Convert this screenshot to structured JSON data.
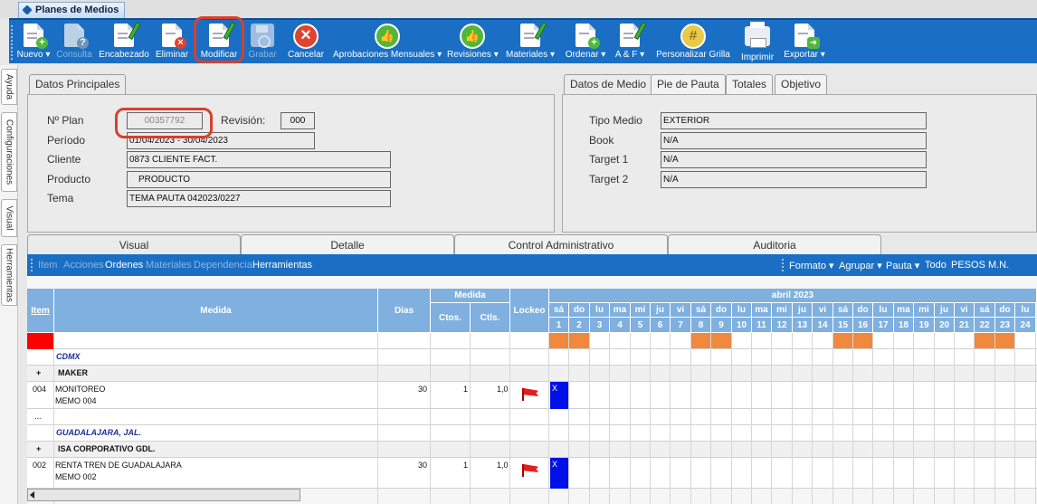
{
  "window": {
    "tab_title": "Planes de Medios"
  },
  "toolbar": {
    "nuevo": "Nuevo ▾",
    "consulta": "Consulta",
    "encabezado": "Encabezado",
    "eliminar": "Eliminar",
    "modificar": "Modificar",
    "grabar": "Grabar",
    "cancelar": "Cancelar",
    "aprobaciones": "Aprobaciones Mensuales ▾",
    "revisiones": "Revisiones ▾",
    "materiales": "Materiales ▾",
    "ordenar": "Ordenar ▾",
    "ayf": "A & F ▾",
    "personalizar": "Personalizar Grilla",
    "imprimir": "Imprimir",
    "exportar": "Exportar ▾"
  },
  "side_tabs": [
    "Ayuda",
    "Configuraciones",
    "Visual",
    "Herramientas"
  ],
  "datos_principales": {
    "tab": "Datos Principales",
    "nro_plan_label": "Nº Plan",
    "nro_plan_value": "00357792",
    "revision_label": "Revisión:",
    "revision_value": "000",
    "periodo_label": "Período",
    "periodo_value": "01/04/2023 - 30/04/2023",
    "cliente_label": "Cliente",
    "cliente_value": "0873 CLIENTE FACT.",
    "producto_label": "Producto",
    "producto_value": "PRODUCTO",
    "tema_label": "Tema",
    "tema_value": "TEMA PAUTA 042023/0227"
  },
  "datos_medio": {
    "tabs": [
      "Datos de Medio",
      "Pie de Pauta",
      "Totales",
      "Objetivo"
    ],
    "tipo_medio_label": "Tipo Medio",
    "tipo_medio_value": "EXTERIOR",
    "book_label": "Book",
    "book_value": "N/A",
    "target1_label": "Target 1",
    "target1_value": "N/A",
    "target2_label": "Target 2",
    "target2_value": "N/A"
  },
  "bottom_tabs": [
    "Visual",
    "Detalle",
    "Control Administrativo",
    "Auditoria"
  ],
  "gridbar": {
    "item": "Item",
    "acciones": "Acciones",
    "ordenes": "Ordenes",
    "materiales": "Materiales",
    "dependencia": "Dependencia",
    "herramientas": "Herramientas",
    "formato": "Formato ▾",
    "agrupar": "Agrupar ▾",
    "pauta": "Pauta ▾",
    "todo": "Todo",
    "moneda": "PESOS M.N."
  },
  "grid": {
    "headers": {
      "item": "Item",
      "medida": "Medida",
      "dias": "Dias",
      "medida_group": "Medida",
      "ctos": "Ctos.",
      "ctls": "Ctls.",
      "lockeo": "Lockeo",
      "month": "abril 2023"
    },
    "days": [
      {
        "d": "sá",
        "n": "1"
      },
      {
        "d": "do",
        "n": "2"
      },
      {
        "d": "lu",
        "n": "3"
      },
      {
        "d": "ma",
        "n": "4"
      },
      {
        "d": "mi",
        "n": "5"
      },
      {
        "d": "ju",
        "n": "6"
      },
      {
        "d": "vi",
        "n": "7"
      },
      {
        "d": "sá",
        "n": "8"
      },
      {
        "d": "do",
        "n": "9"
      },
      {
        "d": "lu",
        "n": "10"
      },
      {
        "d": "ma",
        "n": "11"
      },
      {
        "d": "mi",
        "n": "12"
      },
      {
        "d": "ju",
        "n": "13"
      },
      {
        "d": "vi",
        "n": "14"
      },
      {
        "d": "sá",
        "n": "15"
      },
      {
        "d": "do",
        "n": "16"
      },
      {
        "d": "lu",
        "n": "17"
      },
      {
        "d": "ma",
        "n": "18"
      },
      {
        "d": "mi",
        "n": "19"
      },
      {
        "d": "ju",
        "n": "20"
      },
      {
        "d": "vi",
        "n": "21"
      },
      {
        "d": "sá",
        "n": "22"
      },
      {
        "d": "do",
        "n": "23"
      },
      {
        "d": "lu",
        "n": "24"
      }
    ],
    "weekend_color": "#f0883e",
    "rows": {
      "city1": "CDMX",
      "group1_toggle": "+",
      "group1": "MAKER",
      "r1_item": "004",
      "r1_name": "MONITOREO",
      "r1_memo": "MEMO 004",
      "r1_dias": "30",
      "r1_ctos": "1",
      "r1_ctls": "1,0",
      "r1_mark": "X",
      "ellipsis": "...",
      "city2": "GUADALAJARA, JAL.",
      "group2_toggle": "+",
      "group2": "ISA CORPORATIVO GDL.",
      "r2_item": "002",
      "r2_name": "RENTA TREN DE GUADALAJARA",
      "r2_memo": "MEMO 002",
      "r2_dias": "30",
      "r2_ctos": "1",
      "r2_ctls": "1,0",
      "r2_mark": "X"
    }
  }
}
